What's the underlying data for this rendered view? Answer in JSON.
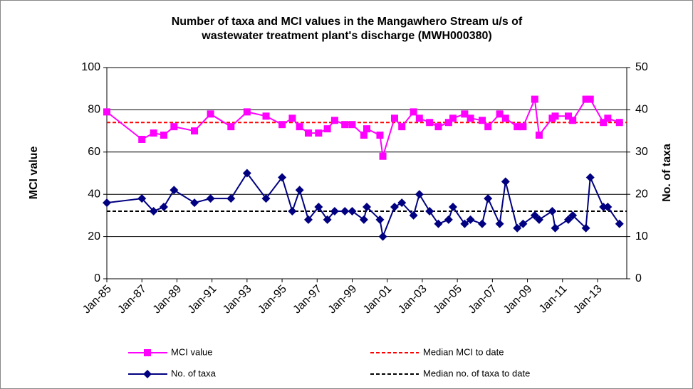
{
  "chart_data": {
    "type": "line",
    "title": "Number of taxa and MCI values in the Mangawhero Stream u/s of",
    "subtitle": "wastewater treatment plant's discharge  (MWH000380)",
    "y_label": "MCI value",
    "y2_label": "No. of taxa",
    "x": [
      "1985-01",
      "1987-01",
      "1987-09",
      "1988-04",
      "1988-11",
      "1990-01",
      "1990-12",
      "1992-02",
      "1993-01",
      "1994-02",
      "1995-01",
      "1995-08",
      "1996-01",
      "1996-07",
      "1997-02",
      "1997-08",
      "1998-01",
      "1998-08",
      "1999-01",
      "1999-09",
      "1999-11",
      "2000-08",
      "2000-10",
      "2001-06",
      "2001-11",
      "2002-07",
      "2002-11",
      "2003-06",
      "2003-12",
      "2004-07",
      "2004-10",
      "2005-06",
      "2005-10",
      "2006-06",
      "2006-10",
      "2007-06",
      "2007-10",
      "2008-06",
      "2008-10",
      "2009-06",
      "2009-09",
      "2010-06",
      "2010-08",
      "2011-05",
      "2011-08",
      "2012-05",
      "2012-08",
      "2013-05",
      "2013-08",
      "2014-04"
    ],
    "series": [
      {
        "name": "MCI value",
        "color": "#ff00ff",
        "marker": "square",
        "values": [
          79,
          66,
          69,
          68,
          72,
          70,
          78,
          72,
          79,
          77,
          73,
          76,
          72,
          69,
          69,
          71,
          75,
          73,
          73,
          68,
          71,
          68,
          58,
          76,
          72,
          79,
          76,
          74,
          72,
          74,
          76,
          78,
          76,
          75,
          72,
          78,
          76,
          72,
          72,
          85,
          68,
          76,
          77,
          77,
          75,
          85,
          85,
          74,
          76,
          74
        ]
      },
      {
        "name": "No. of taxa",
        "color": "#000080",
        "marker": "diamond",
        "axis": "y2",
        "values": [
          18,
          19,
          16,
          17,
          21,
          18,
          19,
          19,
          25,
          19,
          24,
          16,
          21,
          14,
          17,
          14,
          16,
          16,
          16,
          14,
          17,
          14,
          10,
          17,
          18,
          15,
          20,
          16,
          13,
          14,
          17,
          13,
          14,
          13,
          19,
          13,
          23,
          12,
          13,
          15,
          14,
          16,
          12,
          14,
          15,
          12,
          24,
          17,
          17,
          13
        ]
      }
    ],
    "reference_lines": [
      {
        "name": "Median MCI to date",
        "value": 74,
        "color": "#ff0000"
      },
      {
        "name": "Median no. of taxa to date",
        "value": 16,
        "color": "#000000",
        "axis": "y2"
      }
    ],
    "xlim": [
      "1985-01",
      "2014-09"
    ],
    "xticks": [
      {
        "value": "1985-01",
        "label": "Jan-85"
      },
      {
        "value": "1987-01",
        "label": "Jan-87"
      },
      {
        "value": "1989-01",
        "label": "Jan-89"
      },
      {
        "value": "1991-01",
        "label": "Jan-91"
      },
      {
        "value": "1993-01",
        "label": "Jan-93"
      },
      {
        "value": "1995-01",
        "label": "Jan-95"
      },
      {
        "value": "1997-01",
        "label": "Jan-97"
      },
      {
        "value": "1999-01",
        "label": "Jan-99"
      },
      {
        "value": "2001-01",
        "label": "Jan-01"
      },
      {
        "value": "2003-01",
        "label": "Jan-03"
      },
      {
        "value": "2005-01",
        "label": "Jan-05"
      },
      {
        "value": "2007-01",
        "label": "Jan-07"
      },
      {
        "value": "2009-01",
        "label": "Jan-09"
      },
      {
        "value": "2011-01",
        "label": "Jan-11"
      },
      {
        "value": "2013-01",
        "label": "Jan-13"
      }
    ],
    "ylim": [
      0,
      100
    ],
    "yticks": [
      0,
      20,
      40,
      60,
      80,
      100
    ],
    "y2lim": [
      0,
      50
    ],
    "y2ticks": [
      0,
      10,
      20,
      30,
      40,
      50
    ],
    "grid": true
  }
}
